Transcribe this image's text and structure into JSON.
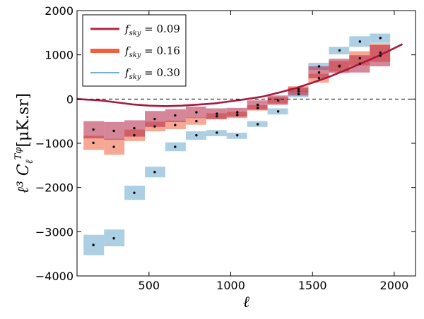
{
  "chart_data": {
    "type": "binned-error-boxes-with-theory-curve",
    "title": "",
    "xlabel": "ℓ",
    "ylabel": "ℓ³ C_ℓ^{Tφ}  [μK.sr]",
    "ylabel_main": "ℓ³ C",
    "ylabel_sub": "ℓ",
    "ylabel_sup": "Tφ",
    "ylabel_units": "[μK.sr]",
    "xlim": [
      60,
      2130
    ],
    "ylim": [
      -4000,
      2000
    ],
    "xticks": [
      500,
      1000,
      1500,
      2000
    ],
    "xtick_labels": [
      "500",
      "1000",
      "1500",
      "2000"
    ],
    "yticks": [
      -4000,
      -3000,
      -2000,
      -1000,
      0,
      1000,
      2000
    ],
    "ytick_labels": [
      "−4000",
      "−3000",
      "−2000",
      "−1000",
      "0",
      "1000",
      "2000"
    ],
    "zero_line": true,
    "legend": {
      "position": "top-left",
      "entries": [
        {
          "label": "f_sky = 0.09",
          "main": "f",
          "sub": "sky",
          "rest": " = 0.09",
          "color": "#b22243"
        },
        {
          "label": "f_sky = 0.16",
          "main": "f",
          "sub": "sky",
          "rest": " = 0.16",
          "color": "#f0603c"
        },
        {
          "label": "f_sky = 0.30",
          "main": "f",
          "sub": "sky",
          "rest": " = 0.30",
          "color": "#74afd2"
        }
      ]
    },
    "theory_curve": {
      "color": "#a8183a",
      "x": [
        60,
        200,
        300,
        400,
        500,
        600,
        700,
        800,
        900,
        1000,
        1100,
        1200,
        1300,
        1400,
        1500,
        1600,
        1700,
        1800,
        1900,
        2000,
        2050
      ],
      "y": [
        0,
        -30,
        -75,
        -120,
        -150,
        -160,
        -150,
        -125,
        -100,
        -50,
        0,
        60,
        150,
        250,
        370,
        500,
        650,
        810,
        970,
        1150,
        1240
      ]
    },
    "bin_edges_x": [
      100,
      225,
      350,
      475,
      600,
      725,
      850,
      975,
      1100,
      1225,
      1350,
      1475,
      1600,
      1725,
      1850,
      1975
    ],
    "series": [
      {
        "name": "f_sky = 0.30",
        "color": "#74afd2",
        "opacity": 0.6,
        "points": [
          {
            "x": 160,
            "y": -3300,
            "lo": -3530,
            "hi": -3070
          },
          {
            "x": 285,
            "y": -3150,
            "lo": -3330,
            "hi": -2950
          },
          {
            "x": 410,
            "y": -2120,
            "lo": -2280,
            "hi": -1960
          },
          {
            "x": 535,
            "y": -1650,
            "lo": -1770,
            "hi": -1530
          },
          {
            "x": 660,
            "y": -1080,
            "lo": -1180,
            "hi": -980
          },
          {
            "x": 790,
            "y": -820,
            "lo": -920,
            "hi": -730
          },
          {
            "x": 915,
            "y": -760,
            "lo": -840,
            "hi": -700
          },
          {
            "x": 1040,
            "y": -820,
            "lo": -900,
            "hi": -760
          },
          {
            "x": 1165,
            "y": -570,
            "lo": -630,
            "hi": -500
          },
          {
            "x": 1290,
            "y": -280,
            "lo": -350,
            "hi": -210
          },
          {
            "x": 1415,
            "y": 110,
            "lo": 40,
            "hi": 190
          },
          {
            "x": 1540,
            "y": 740,
            "lo": 660,
            "hi": 820
          },
          {
            "x": 1665,
            "y": 1100,
            "lo": 1010,
            "hi": 1180
          },
          {
            "x": 1790,
            "y": 1300,
            "lo": 1180,
            "hi": 1420
          },
          {
            "x": 1915,
            "y": 1380,
            "lo": 1270,
            "hi": 1480
          }
        ]
      },
      {
        "name": "f_sky = 0.16",
        "color": "#f0603c",
        "opacity": 0.55,
        "points": [
          {
            "x": 160,
            "y": -990,
            "lo": -1150,
            "hi": -830
          },
          {
            "x": 285,
            "y": -1080,
            "lo": -1260,
            "hi": -900
          },
          {
            "x": 410,
            "y": -820,
            "lo": -950,
            "hi": -690
          },
          {
            "x": 535,
            "y": -620,
            "lo": -730,
            "hi": -510
          },
          {
            "x": 660,
            "y": -590,
            "lo": -680,
            "hi": -490
          },
          {
            "x": 790,
            "y": -500,
            "lo": -580,
            "hi": -420
          },
          {
            "x": 915,
            "y": -390,
            "lo": -460,
            "hi": -320
          },
          {
            "x": 1040,
            "y": -360,
            "lo": -430,
            "hi": -290
          },
          {
            "x": 1165,
            "y": -200,
            "lo": -260,
            "hi": -140
          },
          {
            "x": 1290,
            "y": -30,
            "lo": -100,
            "hi": 40
          },
          {
            "x": 1415,
            "y": 220,
            "lo": 150,
            "hi": 290
          },
          {
            "x": 1540,
            "y": 470,
            "lo": 370,
            "hi": 570
          },
          {
            "x": 1665,
            "y": 740,
            "lo": 620,
            "hi": 860
          },
          {
            "x": 1790,
            "y": 920,
            "lo": 760,
            "hi": 1080
          },
          {
            "x": 1915,
            "y": 1050,
            "lo": 840,
            "hi": 1260
          }
        ]
      },
      {
        "name": "f_sky = 0.09",
        "color": "#b22243",
        "opacity": 0.55,
        "points": [
          {
            "x": 160,
            "y": -690,
            "lo": -890,
            "hi": -500
          },
          {
            "x": 285,
            "y": -720,
            "lo": -920,
            "hi": -520
          },
          {
            "x": 410,
            "y": -660,
            "lo": -850,
            "hi": -480
          },
          {
            "x": 535,
            "y": -450,
            "lo": -630,
            "hi": -270
          },
          {
            "x": 660,
            "y": -370,
            "lo": -520,
            "hi": -230
          },
          {
            "x": 790,
            "y": -300,
            "lo": -430,
            "hi": -170
          },
          {
            "x": 915,
            "y": -330,
            "lo": -450,
            "hi": -210
          },
          {
            "x": 1040,
            "y": -300,
            "lo": -400,
            "hi": -200
          },
          {
            "x": 1165,
            "y": -130,
            "lo": -240,
            "hi": -30
          },
          {
            "x": 1290,
            "y": -30,
            "lo": -130,
            "hi": 80
          },
          {
            "x": 1415,
            "y": 170,
            "lo": 80,
            "hi": 260
          },
          {
            "x": 1540,
            "y": 600,
            "lo": 470,
            "hi": 740
          },
          {
            "x": 1665,
            "y": 750,
            "lo": 590,
            "hi": 910
          },
          {
            "x": 1790,
            "y": 800,
            "lo": 600,
            "hi": 990
          },
          {
            "x": 1915,
            "y": 980,
            "lo": 740,
            "hi": 1220
          }
        ]
      }
    ]
  }
}
